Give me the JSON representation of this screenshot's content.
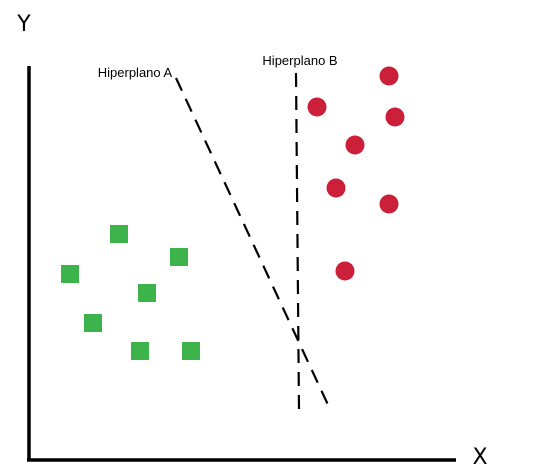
{
  "axes": {
    "x_label": "X",
    "y_label": "Y"
  },
  "hyperplanes": [
    {
      "label": "Hiperplano A"
    },
    {
      "label": "Hiperplano B"
    }
  ],
  "classes": [
    {
      "shape": "square",
      "color": "#3cb44b",
      "count": 7
    },
    {
      "shape": "circle",
      "color": "#cc1f3a",
      "count": 7
    }
  ]
}
